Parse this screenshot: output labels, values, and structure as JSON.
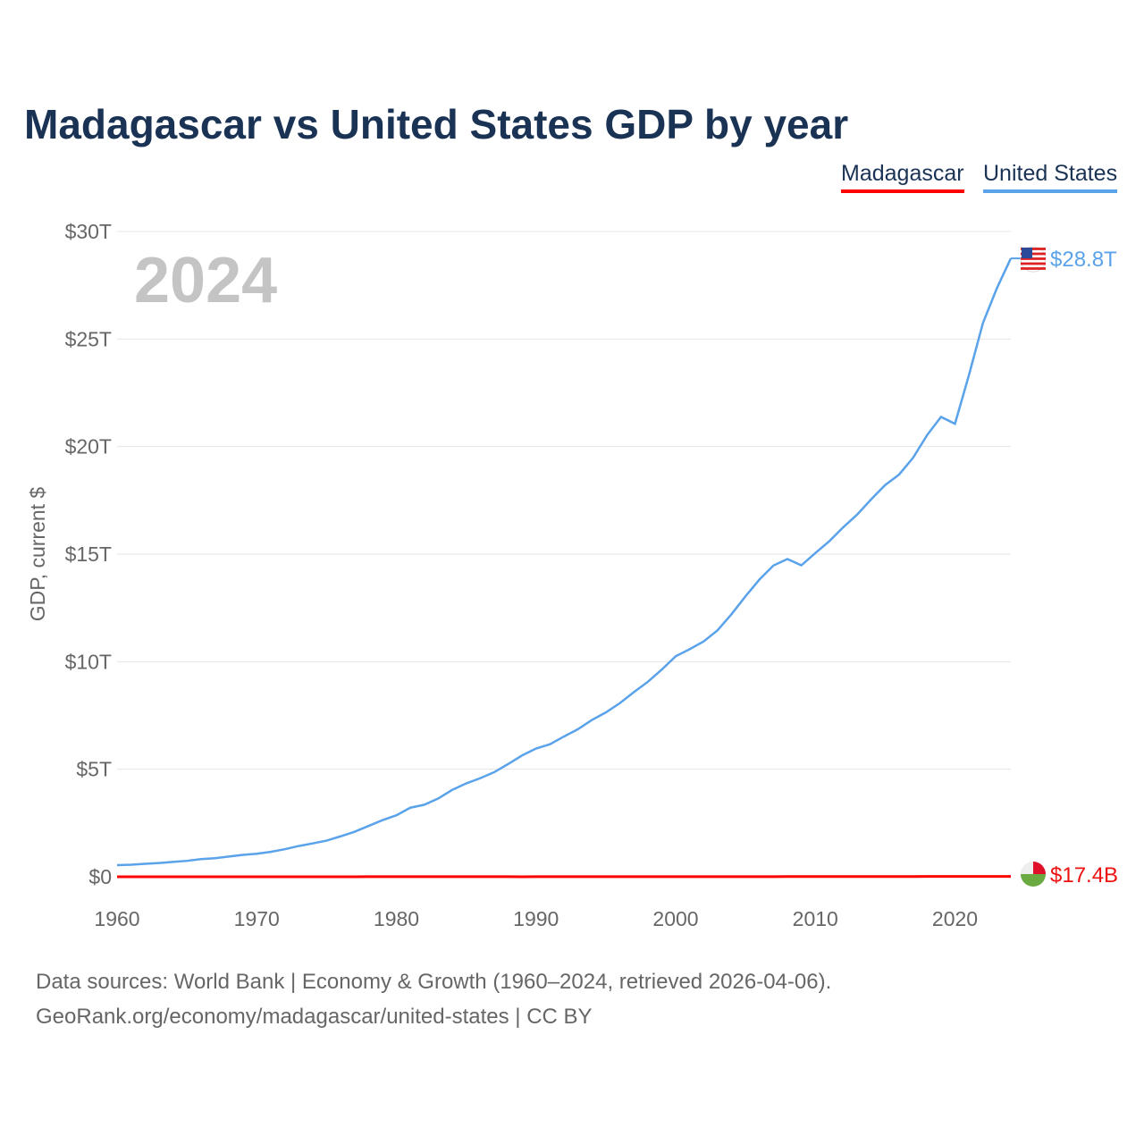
{
  "title": "Madagascar vs United States GDP by year",
  "legend": [
    {
      "label": "Madagascar",
      "color": "#ff0000"
    },
    {
      "label": "United States",
      "color": "#5aa2ea"
    }
  ],
  "year_watermark": "2024",
  "end_labels": {
    "madagascar": "$17.4B",
    "united_states": "$28.8T"
  },
  "sources": [
    "Data sources: World Bank | Economy & Growth (1960–2024, retrieved 2026-04-06).",
    "GeoRank.org/economy/madagascar/united-states | CC BY"
  ],
  "chart_data": {
    "type": "line",
    "title": "Madagascar vs United States GDP by year",
    "ylabel": "GDP, current $",
    "xlim": [
      1960,
      2024
    ],
    "ylim": [
      0,
      30
    ],
    "x_ticks": [
      "1960",
      "1970",
      "1980",
      "1990",
      "2000",
      "2010",
      "2020"
    ],
    "y_ticks": [
      "$0",
      "$5T",
      "$10T",
      "$15T",
      "$20T",
      "$25T",
      "$30T"
    ],
    "units": "trillions USD",
    "start_year": 1960,
    "series": [
      {
        "name": "United States",
        "color": "#5aa2ea",
        "values": [
          0.54,
          0.56,
          0.6,
          0.64,
          0.69,
          0.74,
          0.82,
          0.86,
          0.94,
          1.02,
          1.07,
          1.16,
          1.28,
          1.43,
          1.55,
          1.68,
          1.88,
          2.09,
          2.36,
          2.63,
          2.86,
          3.21,
          3.35,
          3.64,
          4.04,
          4.34,
          4.58,
          4.86,
          5.24,
          5.64,
          5.96,
          6.16,
          6.52,
          6.86,
          7.29,
          7.64,
          8.07,
          8.58,
          9.06,
          9.63,
          10.25,
          10.58,
          10.94,
          11.46,
          12.21,
          13.04,
          13.82,
          14.47,
          14.77,
          14.48,
          15.05,
          15.6,
          16.25,
          16.84,
          17.55,
          18.21,
          18.7,
          19.48,
          20.53,
          21.38,
          21.06,
          23.32,
          25.74,
          27.36,
          28.75
        ]
      },
      {
        "name": "Madagascar",
        "color": "#ff0000",
        "values": [
          0.0007,
          0.0007,
          0.0008,
          0.0008,
          0.0008,
          0.0009,
          0.0009,
          0.001,
          0.001,
          0.001,
          0.0011,
          0.0012,
          0.0013,
          0.0016,
          0.0019,
          0.0023,
          0.0023,
          0.0025,
          0.0029,
          0.0037,
          0.0041,
          0.0035,
          0.0034,
          0.0033,
          0.0028,
          0.0029,
          0.0035,
          0.0027,
          0.0026,
          0.0025,
          0.0031,
          0.0027,
          0.003,
          0.0034,
          0.003,
          0.0032,
          0.004,
          0.0035,
          0.0037,
          0.0037,
          0.0039,
          0.0045,
          0.0044,
          0.0055,
          0.0044,
          0.0051,
          0.0055,
          0.0074,
          0.0096,
          0.0086,
          0.0087,
          0.0099,
          0.0099,
          0.0106,
          0.0107,
          0.0098,
          0.01,
          0.0112,
          0.0135,
          0.0141,
          0.0131,
          0.0145,
          0.015,
          0.0158,
          0.0174
        ]
      }
    ]
  }
}
